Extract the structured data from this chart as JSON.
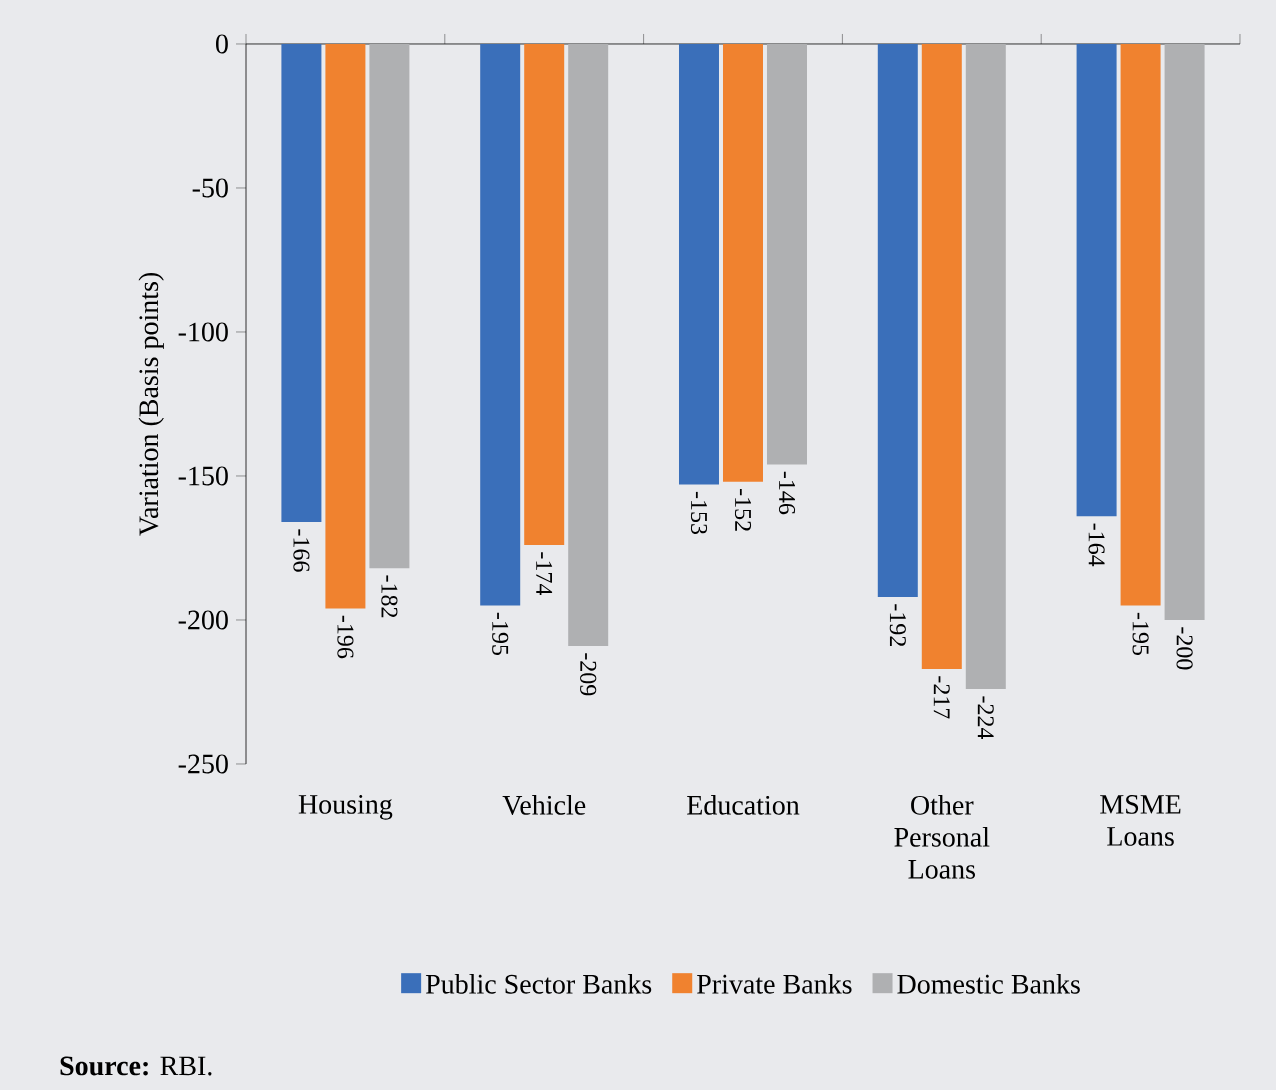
{
  "chart_data": {
    "type": "bar",
    "ylabel": "Variation (Basis points)",
    "categories": [
      "Housing",
      "Vehicle",
      "Education",
      "Other Personal Loans",
      "MSME Loans"
    ],
    "series": [
      {
        "name": "Public Sector Banks",
        "color": "#3a6fba",
        "values": [
          -166,
          -195,
          -153,
          -192,
          -164
        ]
      },
      {
        "name": "Private Banks",
        "color": "#f0822f",
        "values": [
          -196,
          -174,
          -152,
          -217,
          -195
        ]
      },
      {
        "name": "Domestic Banks",
        "color": "#afb0b2",
        "values": [
          -182,
          -209,
          -146,
          -224,
          -200
        ]
      }
    ],
    "ylim": [
      -250,
      0
    ],
    "yticks": [
      -250,
      -200,
      -150,
      -100,
      -50,
      0
    ],
    "data_labels": true,
    "legend": "bottom",
    "grid": false,
    "annotations": [
      "**Source:** RBI."
    ]
  }
}
